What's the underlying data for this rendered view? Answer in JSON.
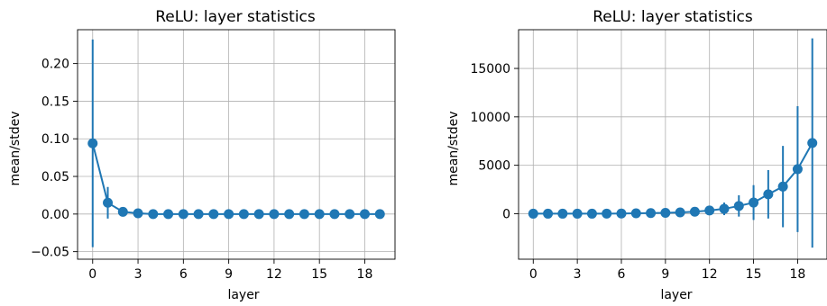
{
  "chart_data": [
    {
      "type": "line",
      "title": "ReLU: layer statistics",
      "xlabel": "layer",
      "ylabel": "mean/stdev",
      "grid": true,
      "xlim": [
        -1,
        20
      ],
      "ylim": [
        -0.06,
        0.245
      ],
      "xticks": [
        0,
        3,
        6,
        9,
        12,
        15,
        18
      ],
      "xtick_labels": [
        "0",
        "3",
        "6",
        "9",
        "12",
        "15",
        "18"
      ],
      "yticks": [
        -0.05,
        0.0,
        0.05,
        0.1,
        0.15,
        0.2
      ],
      "ytick_labels": [
        "−0.05",
        "0.00",
        "0.05",
        "0.10",
        "0.15",
        "0.20"
      ],
      "color": "#1f77b4",
      "x": [
        0,
        1,
        2,
        3,
        4,
        5,
        6,
        7,
        8,
        9,
        10,
        11,
        12,
        13,
        14,
        15,
        16,
        17,
        18,
        19
      ],
      "mean": [
        0.094,
        0.015,
        0.003,
        0.001,
        0.0,
        0.0,
        0.0,
        0.0,
        0.0,
        0.0,
        0.0,
        0.0,
        0.0,
        0.0,
        0.0,
        0.0,
        0.0,
        0.0,
        0.0,
        0.0
      ],
      "stdev": [
        0.138,
        0.021,
        0.004,
        0.001,
        0.0005,
        0.0003,
        0.0002,
        0.0001,
        0.0001,
        0.0001,
        0.0001,
        0.0001,
        0.0001,
        0.0001,
        0.0001,
        0.0001,
        0.0001,
        0.0001,
        0.0001,
        0.0001
      ]
    },
    {
      "type": "line",
      "title": "ReLU: layer statistics",
      "xlabel": "layer",
      "ylabel": "mean/stdev",
      "grid": true,
      "xlim": [
        -1,
        20
      ],
      "ylim": [
        -4700,
        19000
      ],
      "xticks": [
        0,
        3,
        6,
        9,
        12,
        15,
        18
      ],
      "xtick_labels": [
        "0",
        "3",
        "6",
        "9",
        "12",
        "15",
        "18"
      ],
      "yticks": [
        0,
        5000,
        10000,
        15000
      ],
      "ytick_labels": [
        "0",
        "5000",
        "10000",
        "15000"
      ],
      "color": "#1f77b4",
      "x": [
        0,
        1,
        2,
        3,
        4,
        5,
        6,
        7,
        8,
        9,
        10,
        11,
        12,
        13,
        14,
        15,
        16,
        17,
        18,
        19
      ],
      "mean": [
        0,
        0,
        0,
        0,
        0,
        10,
        20,
        40,
        60,
        90,
        130,
        200,
        330,
        500,
        800,
        1150,
        2000,
        2800,
        4600,
        7300
      ],
      "stdev": [
        0,
        0,
        0,
        0,
        0,
        10,
        20,
        30,
        50,
        80,
        120,
        180,
        300,
        650,
        1100,
        1800,
        2500,
        4200,
        6500,
        10800
      ]
    }
  ]
}
